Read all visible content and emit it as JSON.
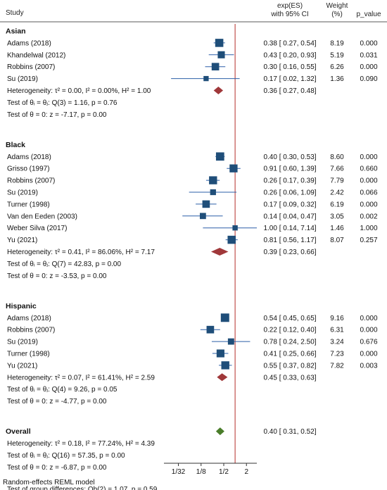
{
  "header": {
    "study": "Study",
    "es_line1": "exp(ES)",
    "es_line2": "with 95% CI",
    "weight_line1": "Weight",
    "weight_line2": "(%)",
    "p_value": "p_value"
  },
  "footer": "Random-effects REML model",
  "colors": {
    "marker": "#1f4e79",
    "ci_line": "#2b5fa8",
    "subgroup_diamond": "#a0383a",
    "overall_diamond": "#4a7d2a",
    "null_line": "#c0504d",
    "axis": "#333333"
  },
  "chart_data": {
    "type": "forest",
    "x_scale": "log2",
    "x_ticks": [
      "1/32",
      "1/8",
      "1/2",
      "2"
    ],
    "x_tick_values": [
      0.03125,
      0.125,
      0.5,
      2
    ],
    "xlim": [
      0.03125,
      4
    ],
    "null_line": 1,
    "model": "Random-effects REML model",
    "groups": [
      {
        "name": "Asian",
        "studies": [
          {
            "study": "Adams (2018)",
            "es": 0.38,
            "lo": 0.27,
            "hi": 0.54,
            "ci_text": "0.38 [ 0.27, 0.54]",
            "weight": "8.19",
            "p": "0.000"
          },
          {
            "study": "Khandelwal (2012)",
            "es": 0.43,
            "lo": 0.2,
            "hi": 0.93,
            "ci_text": "0.43 [ 0.20, 0.93]",
            "weight": "5.19",
            "p": "0.031"
          },
          {
            "study": "Robbins (2007)",
            "es": 0.3,
            "lo": 0.16,
            "hi": 0.55,
            "ci_text": "0.30 [ 0.16, 0.55]",
            "weight": "6.26",
            "p": "0.000"
          },
          {
            "study": "Su (2019)",
            "es": 0.17,
            "lo": 0.02,
            "hi": 1.32,
            "ci_text": "0.17 [ 0.02, 1.32]",
            "weight": "1.36",
            "p": "0.090"
          }
        ],
        "summary": {
          "label": "Heterogeneity: τ² = 0.00, I² = 0.00%, H² = 1.00",
          "es": 0.36,
          "lo": 0.27,
          "hi": 0.48,
          "ci_text": "0.36 [ 0.27, 0.48]"
        },
        "tests": [
          "Test of θᵢ = θⱼ: Q(3) = 1.16, p = 0.76",
          "Test of θ = 0: z = -7.17, p = 0.00"
        ]
      },
      {
        "name": "Black",
        "studies": [
          {
            "study": "Adams (2018)",
            "es": 0.4,
            "lo": 0.3,
            "hi": 0.53,
            "ci_text": "0.40 [ 0.30, 0.53]",
            "weight": "8.60",
            "p": "0.000"
          },
          {
            "study": "Grisso (1997)",
            "es": 0.91,
            "lo": 0.6,
            "hi": 1.39,
            "ci_text": "0.91 [ 0.60, 1.39]",
            "weight": "7.66",
            "p": "0.660"
          },
          {
            "study": "Robbins (2007)",
            "es": 0.26,
            "lo": 0.17,
            "hi": 0.39,
            "ci_text": "0.26 [ 0.17, 0.39]",
            "weight": "7.79",
            "p": "0.000"
          },
          {
            "study": "Su (2019)",
            "es": 0.26,
            "lo": 0.06,
            "hi": 1.09,
            "ci_text": "0.26 [ 0.06, 1.09]",
            "weight": "2.42",
            "p": "0.066"
          },
          {
            "study": "Turner (1998)",
            "es": 0.17,
            "lo": 0.09,
            "hi": 0.32,
            "ci_text": "0.17 [ 0.09, 0.32]",
            "weight": "6.19",
            "p": "0.000"
          },
          {
            "study": "Van den Eeden (2003)",
            "es": 0.14,
            "lo": 0.04,
            "hi": 0.47,
            "ci_text": "0.14 [ 0.04, 0.47]",
            "weight": "3.05",
            "p": "0.002"
          },
          {
            "study": "Weber Silva (2017)",
            "es": 1.0,
            "lo": 0.14,
            "hi": 7.14,
            "ci_text": "1.00 [ 0.14, 7.14]",
            "weight": "1.46",
            "p": "1.000"
          },
          {
            "study": "Yu  (2021)",
            "es": 0.81,
            "lo": 0.56,
            "hi": 1.17,
            "ci_text": "0.81 [ 0.56, 1.17]",
            "weight": "8.07",
            "p": "0.257"
          }
        ],
        "summary": {
          "label": "Heterogeneity: τ² = 0.41, I² = 86.06%, H² = 7.17",
          "es": 0.39,
          "lo": 0.23,
          "hi": 0.66,
          "ci_text": "0.39 [ 0.23, 0.66]"
        },
        "tests": [
          "Test of θᵢ = θⱼ: Q(7) = 42.83, p = 0.00",
          "Test of θ = 0: z = -3.53, p = 0.00"
        ]
      },
      {
        "name": "Hispanic",
        "studies": [
          {
            "study": "Adams (2018)",
            "es": 0.54,
            "lo": 0.45,
            "hi": 0.65,
            "ci_text": "0.54 [ 0.45, 0.65]",
            "weight": "9.16",
            "p": "0.000"
          },
          {
            "study": "Robbins (2007)",
            "es": 0.22,
            "lo": 0.12,
            "hi": 0.4,
            "ci_text": "0.22 [ 0.12, 0.40]",
            "weight": "6.31",
            "p": "0.000"
          },
          {
            "study": "Su (2019)",
            "es": 0.78,
            "lo": 0.24,
            "hi": 2.5,
            "ci_text": "0.78 [ 0.24, 2.50]",
            "weight": "3.24",
            "p": "0.676"
          },
          {
            "study": "Turner (1998)",
            "es": 0.41,
            "lo": 0.25,
            "hi": 0.66,
            "ci_text": "0.41 [ 0.25, 0.66]",
            "weight": "7.23",
            "p": "0.000"
          },
          {
            "study": "Yu  (2021)",
            "es": 0.55,
            "lo": 0.37,
            "hi": 0.82,
            "ci_text": "0.55 [ 0.37, 0.82]",
            "weight": "7.82",
            "p": "0.003"
          }
        ],
        "summary": {
          "label": "Heterogeneity: τ² = 0.07, I² = 61.41%, H² = 2.59",
          "es": 0.45,
          "lo": 0.33,
          "hi": 0.63,
          "ci_text": "0.45 [ 0.33, 0.63]"
        },
        "tests": [
          "Test of θᵢ = θⱼ: Q(4) = 9.26, p = 0.05",
          "Test of θ = 0: z = -4.77, p = 0.00"
        ]
      }
    ],
    "overall": {
      "name": "Overall",
      "es": 0.4,
      "lo": 0.31,
      "hi": 0.52,
      "ci_text": "0.40 [ 0.31, 0.52]",
      "lines": [
        "Heterogeneity: τ² = 0.18, I² = 77.24%, H² = 4.39",
        "Test of θᵢ = θⱼ: Q(16) = 57.35, p = 0.00",
        "Test of θ = 0: z = -6.87, p = 0.00"
      ]
    },
    "group_test": "Test of group differences: Qb(2) = 1.07, p = 0.59"
  }
}
